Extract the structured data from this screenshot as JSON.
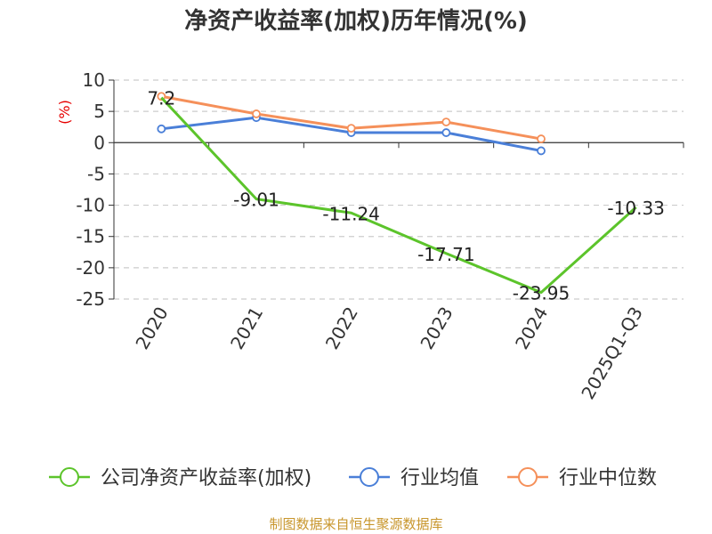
{
  "chart_data": {
    "type": "line",
    "title": "净资产收益率(加权)历年情况(%)",
    "ylabel": "(%)",
    "categories": [
      "2020",
      "2021",
      "2022",
      "2023",
      "2024",
      "2025Q1-Q3"
    ],
    "ylim": [
      -25,
      10
    ],
    "yticks": [
      10,
      5,
      0,
      -5,
      -10,
      -15,
      -20,
      -25
    ],
    "grid": true,
    "legend_position": "bottom",
    "series": [
      {
        "name": "公司净资产收益率(加权)",
        "color": "#5cc42b",
        "values": [
          7.2,
          -9.01,
          -11.24,
          -17.71,
          -23.95,
          -10.33
        ],
        "labels": [
          "7.2",
          "-9.01",
          "-11.24",
          "-17.71",
          "-23.95",
          "-10.33"
        ]
      },
      {
        "name": "行业均值",
        "color": "#4a7fd8",
        "values": [
          2.2,
          4.0,
          1.6,
          1.6,
          -1.3,
          null
        ]
      },
      {
        "name": "行业中位数",
        "color": "#f5905a",
        "values": [
          7.4,
          4.6,
          2.3,
          3.3,
          0.6,
          null
        ]
      }
    ],
    "source": "制图数据来自恒生聚源数据库"
  }
}
